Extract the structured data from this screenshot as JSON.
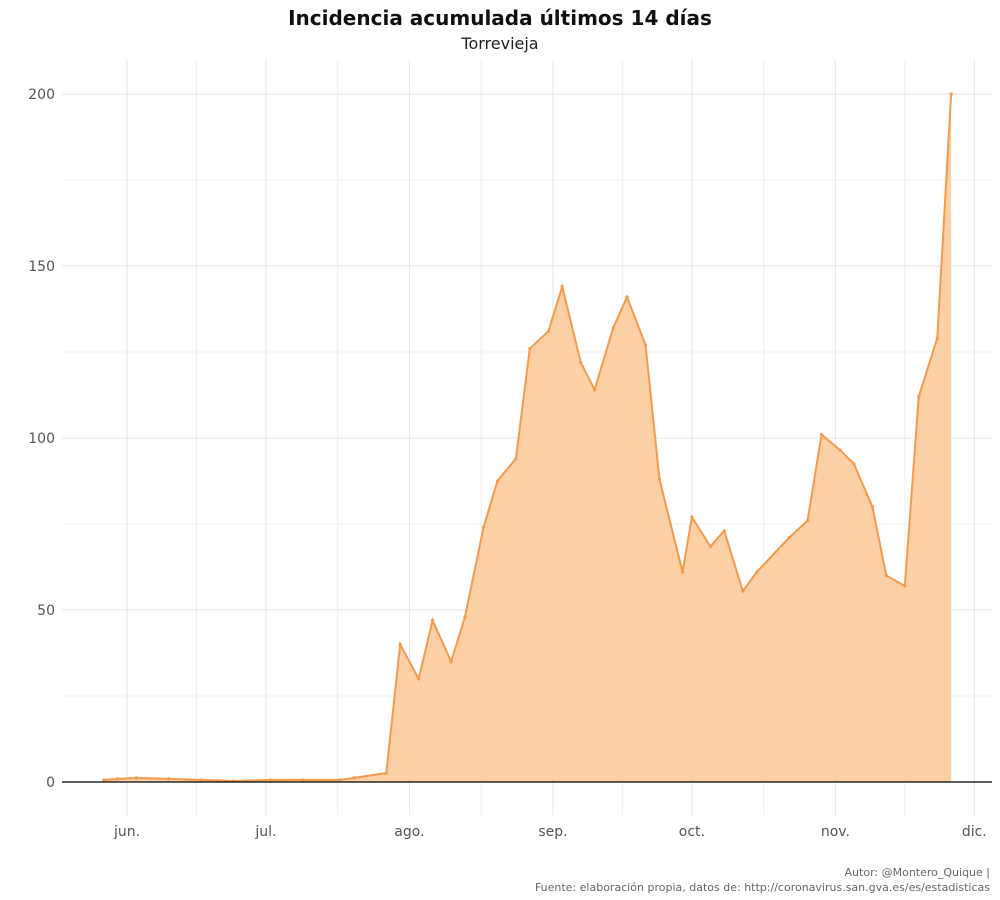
{
  "chart_data": {
    "type": "area",
    "title": "Incidencia acumulada últimos 14 días",
    "subtitle": "Torrevieja",
    "xlabel": "",
    "ylabel": "",
    "ylim": [
      0,
      200
    ],
    "yticks": [
      0,
      50,
      100,
      150,
      200
    ],
    "xticks": [
      {
        "date": "2020-06-01",
        "label": "jun."
      },
      {
        "date": "2020-07-01",
        "label": "jul."
      },
      {
        "date": "2020-08-01",
        "label": "ago."
      },
      {
        "date": "2020-09-01",
        "label": "sep."
      },
      {
        "date": "2020-10-01",
        "label": "oct."
      },
      {
        "date": "2020-11-01",
        "label": "nov."
      },
      {
        "date": "2020-12-01",
        "label": "dic."
      }
    ],
    "grid": true,
    "color": "#f39a4e",
    "fill": "#fccca0",
    "series": [
      {
        "name": "Torrevieja",
        "points": [
          [
            "2020-05-27",
            0.6
          ],
          [
            "2020-05-30",
            0.9
          ],
          [
            "2020-06-03",
            1.2
          ],
          [
            "2020-06-10",
            0.9
          ],
          [
            "2020-06-17",
            0.6
          ],
          [
            "2020-06-24",
            0.3
          ],
          [
            "2020-07-02",
            0.6
          ],
          [
            "2020-07-09",
            0.6
          ],
          [
            "2020-07-17",
            0.6
          ],
          [
            "2020-07-20",
            1.2
          ],
          [
            "2020-07-27",
            2.6
          ],
          [
            "2020-07-30",
            40
          ],
          [
            "2020-08-03",
            30
          ],
          [
            "2020-08-06",
            47
          ],
          [
            "2020-08-10",
            35
          ],
          [
            "2020-08-13",
            48
          ],
          [
            "2020-08-17",
            74
          ],
          [
            "2020-08-20",
            87.5
          ],
          [
            "2020-08-24",
            94
          ],
          [
            "2020-08-27",
            126
          ],
          [
            "2020-08-31",
            131
          ],
          [
            "2020-09-03",
            144
          ],
          [
            "2020-09-07",
            122
          ],
          [
            "2020-09-10",
            114
          ],
          [
            "2020-09-14",
            132
          ],
          [
            "2020-09-17",
            141
          ],
          [
            "2020-09-21",
            127
          ],
          [
            "2020-09-24",
            88
          ],
          [
            "2020-09-29",
            61
          ],
          [
            "2020-10-01",
            77
          ],
          [
            "2020-10-05",
            68.5
          ],
          [
            "2020-10-08",
            73
          ],
          [
            "2020-10-12",
            55.5
          ],
          [
            "2020-10-15",
            61
          ],
          [
            "2020-10-22",
            71
          ],
          [
            "2020-10-26",
            76
          ],
          [
            "2020-10-29",
            101
          ],
          [
            "2020-11-02",
            96.5
          ],
          [
            "2020-11-05",
            92.5
          ],
          [
            "2020-11-09",
            80
          ],
          [
            "2020-11-12",
            60
          ],
          [
            "2020-11-16",
            57
          ],
          [
            "2020-11-19",
            112
          ],
          [
            "2020-11-23",
            129
          ],
          [
            "2020-11-26",
            200
          ]
        ]
      }
    ]
  },
  "caption": {
    "author": "Autor: @Montero_Quique |",
    "source": "Fuente: elaboración propia, datos de: http://coronavirus.san.gva.es/es/estadisticas"
  }
}
